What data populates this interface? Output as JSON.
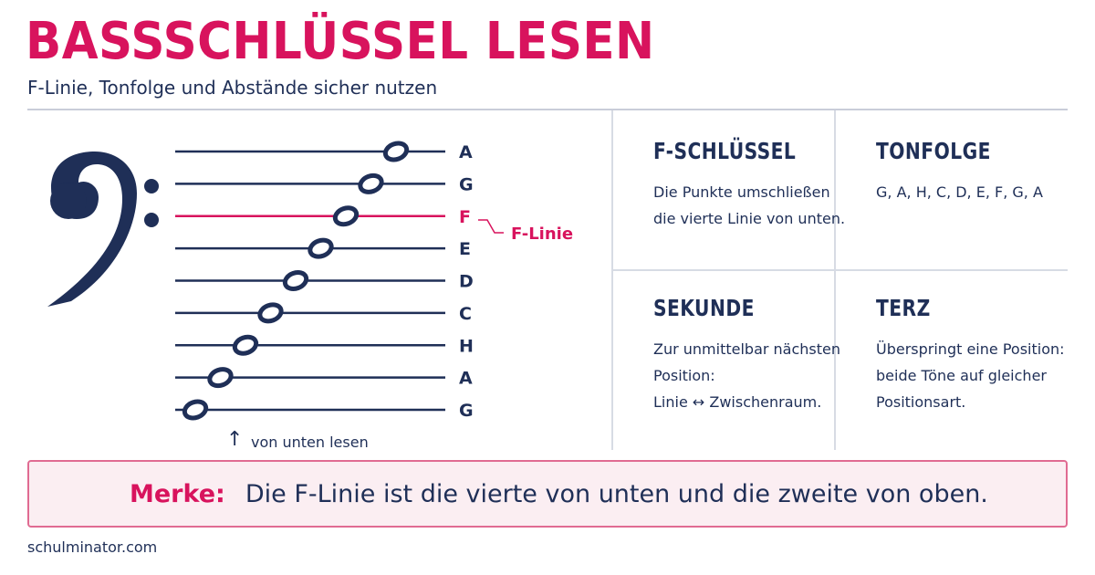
{
  "header": {
    "title": "BASSSCHLÜSSEL LESEN",
    "subtitle": "F-Linie, Tonfolge und Abstände sicher nutzen"
  },
  "staff": {
    "lines": [
      {
        "note": "A",
        "highlight": false
      },
      {
        "note": "G",
        "highlight": false
      },
      {
        "note": "F",
        "highlight": true
      },
      {
        "note": "E",
        "highlight": false
      },
      {
        "note": "D",
        "highlight": false
      },
      {
        "note": "C",
        "highlight": false
      },
      {
        "note": "H",
        "highlight": false
      },
      {
        "note": "A",
        "highlight": false
      },
      {
        "note": "G",
        "highlight": false
      }
    ],
    "f_line_label": "F-Linie",
    "arrow_glyph": "↑",
    "read_hint": "von unten lesen",
    "colors": {
      "line": "#1f2f57",
      "highlight": "#d8135d"
    }
  },
  "cards": {
    "f_clef": {
      "title": "F-SCHLÜSSEL",
      "lines": [
        "Die Punkte umschließen",
        "die vierte Linie von unten."
      ]
    },
    "tonfolge": {
      "title": "TONFOLGE",
      "lines": [
        "G, A, H, C, D, E, F, G, A"
      ]
    },
    "sekunde": {
      "title": "SEKUNDE",
      "lines": [
        "Zur unmittelbar nächsten",
        "Position:",
        "Linie ↔ Zwischenraum."
      ]
    },
    "terz": {
      "title": "TERZ",
      "lines": [
        "Überspringt eine Position:",
        "beide Töne auf gleicher",
        "Positionsart."
      ]
    }
  },
  "merke": {
    "label": "Merke:",
    "text": "Die F-Linie ist die vierte von unten und die zweite von oben."
  },
  "footer": {
    "text": "schulminator.com"
  }
}
